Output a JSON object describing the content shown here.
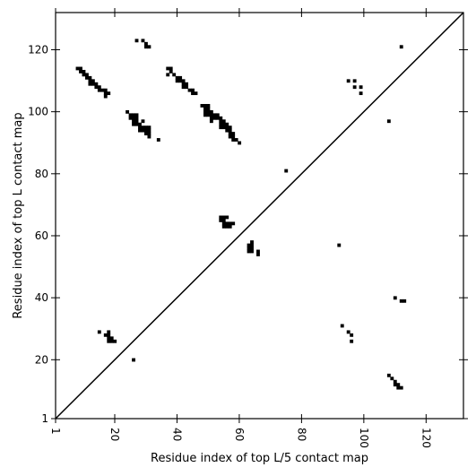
{
  "chart_data": {
    "type": "scatter",
    "title": "",
    "xlabel": "Residue index of top L/5 contact map",
    "ylabel": "Residue index of top L contact map",
    "xlim": [
      1,
      132
    ],
    "ylim": [
      1,
      132
    ],
    "x_ticks": [
      1,
      20,
      40,
      60,
      80,
      100,
      120
    ],
    "y_ticks": [
      1,
      20,
      40,
      60,
      80,
      100,
      120
    ],
    "x_tick_labels": [
      "1",
      "20",
      "40",
      "60",
      "80",
      "100",
      "120"
    ],
    "y_tick_labels": [
      "1",
      "20",
      "40",
      "60",
      "80",
      "100",
      "120"
    ],
    "grid": false,
    "diagonal": true,
    "marker_color": "#000000",
    "upper_triangle_series": {
      "name": "",
      "points": [
        [
          27,
          123
        ],
        [
          29,
          123
        ],
        [
          30,
          122
        ],
        [
          30,
          121
        ],
        [
          31,
          121
        ],
        [
          8,
          114
        ],
        [
          9,
          114
        ],
        [
          9,
          113
        ],
        [
          10,
          113
        ],
        [
          10,
          112
        ],
        [
          11,
          112
        ],
        [
          11,
          111
        ],
        [
          12,
          111
        ],
        [
          12,
          110
        ],
        [
          12,
          109
        ],
        [
          13,
          110
        ],
        [
          13,
          109
        ],
        [
          14,
          109
        ],
        [
          14,
          108
        ],
        [
          15,
          108
        ],
        [
          15,
          107
        ],
        [
          16,
          107
        ],
        [
          17,
          107
        ],
        [
          17,
          106
        ],
        [
          17,
          105
        ],
        [
          18,
          106
        ],
        [
          37,
          114
        ],
        [
          38,
          114
        ],
        [
          37,
          112
        ],
        [
          38,
          113
        ],
        [
          39,
          112
        ],
        [
          40,
          111
        ],
        [
          41,
          111
        ],
        [
          40,
          110
        ],
        [
          41,
          110
        ],
        [
          42,
          110
        ],
        [
          42,
          109
        ],
        [
          43,
          109
        ],
        [
          43,
          108
        ],
        [
          42,
          108
        ],
        [
          44,
          107
        ],
        [
          45,
          107
        ],
        [
          45,
          106
        ],
        [
          46,
          106
        ],
        [
          24,
          100
        ],
        [
          25,
          99
        ],
        [
          26,
          99
        ],
        [
          27,
          99
        ],
        [
          25,
          98
        ],
        [
          26,
          98
        ],
        [
          27,
          98
        ],
        [
          26,
          97
        ],
        [
          27,
          97
        ],
        [
          26,
          96
        ],
        [
          27,
          96
        ],
        [
          28,
          96
        ],
        [
          29,
          97
        ],
        [
          28,
          95
        ],
        [
          29,
          95
        ],
        [
          30,
          95
        ],
        [
          31,
          95
        ],
        [
          28,
          94
        ],
        [
          29,
          94
        ],
        [
          30,
          94
        ],
        [
          31,
          94
        ],
        [
          30,
          93
        ],
        [
          31,
          93
        ],
        [
          31,
          92
        ],
        [
          34,
          91
        ],
        [
          48,
          102
        ],
        [
          49,
          102
        ],
        [
          50,
          102
        ],
        [
          49,
          101
        ],
        [
          50,
          101
        ],
        [
          49,
          100
        ],
        [
          50,
          100
        ],
        [
          51,
          100
        ],
        [
          49,
          99
        ],
        [
          50,
          99
        ],
        [
          51,
          99
        ],
        [
          52,
          99
        ],
        [
          53,
          99
        ],
        [
          51,
          98
        ],
        [
          52,
          98
        ],
        [
          53,
          98
        ],
        [
          54,
          98
        ],
        [
          51,
          97
        ],
        [
          54,
          97
        ],
        [
          55,
          97
        ],
        [
          54,
          96
        ],
        [
          55,
          96
        ],
        [
          56,
          96
        ],
        [
          54,
          95
        ],
        [
          55,
          95
        ],
        [
          56,
          95
        ],
        [
          57,
          95
        ],
        [
          56,
          94
        ],
        [
          57,
          94
        ],
        [
          57,
          93
        ],
        [
          58,
          93
        ],
        [
          57,
          92
        ],
        [
          58,
          92
        ],
        [
          58,
          91
        ],
        [
          59,
          91
        ],
        [
          60,
          90
        ],
        [
          75,
          81
        ],
        [
          108,
          97
        ],
        [
          112,
          121
        ],
        [
          95,
          110
        ],
        [
          97,
          110
        ],
        [
          97,
          108
        ],
        [
          99,
          108
        ],
        [
          99,
          106
        ],
        [
          54,
          66
        ],
        [
          55,
          66
        ],
        [
          56,
          66
        ],
        [
          54,
          65
        ],
        [
          55,
          65
        ],
        [
          55,
          64
        ],
        [
          56,
          64
        ],
        [
          57,
          64
        ],
        [
          58,
          64
        ],
        [
          55,
          63
        ],
        [
          56,
          63
        ],
        [
          57,
          63
        ],
        [
          64,
          58
        ],
        [
          63,
          57
        ],
        [
          64,
          57
        ],
        [
          63,
          56
        ],
        [
          64,
          56
        ],
        [
          63,
          55
        ],
        [
          64,
          55
        ],
        [
          66,
          55
        ],
        [
          66,
          54
        ]
      ]
    },
    "lower_triangle_series": {
      "name": "",
      "points": [
        [
          92,
          57
        ],
        [
          110,
          40
        ],
        [
          112,
          39
        ],
        [
          113,
          39
        ],
        [
          93,
          31
        ],
        [
          95,
          29
        ],
        [
          96,
          28
        ],
        [
          96,
          26
        ],
        [
          108,
          15
        ],
        [
          109,
          14
        ],
        [
          110,
          13
        ],
        [
          110,
          12
        ],
        [
          111,
          12
        ],
        [
          111,
          11
        ],
        [
          112,
          11
        ],
        [
          15,
          29
        ],
        [
          17,
          28
        ],
        [
          18,
          29
        ],
        [
          18,
          28
        ],
        [
          18,
          27
        ],
        [
          18,
          26
        ],
        [
          19,
          27
        ],
        [
          19,
          26
        ],
        [
          20,
          26
        ],
        [
          26,
          20
        ]
      ]
    }
  }
}
